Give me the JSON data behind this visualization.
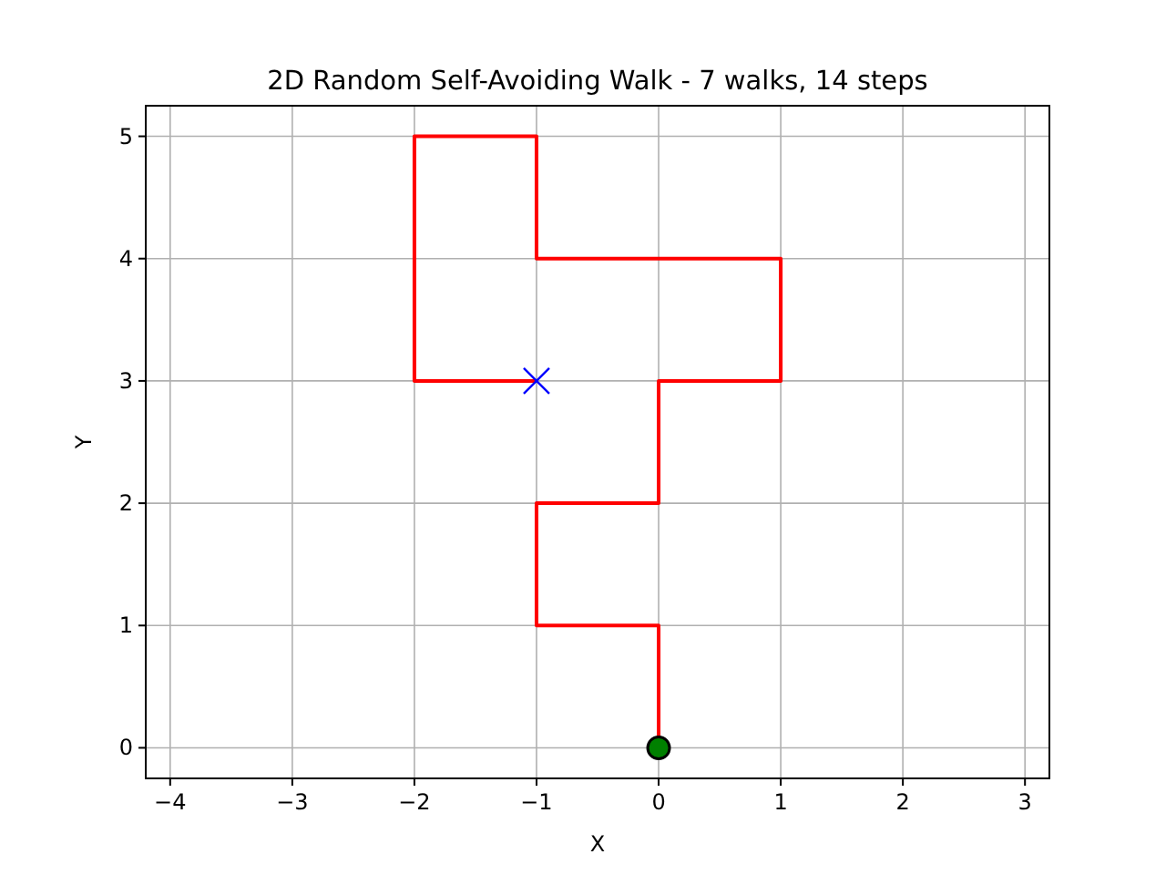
{
  "chart_data": {
    "type": "line",
    "title": "2D Random Self-Avoiding Walk - 7 walks, 14 steps",
    "xlabel": "X",
    "ylabel": "Y",
    "xlim": [
      -4.2,
      3.2
    ],
    "ylim": [
      -0.25,
      5.25
    ],
    "xticks": [
      -4,
      -3,
      -2,
      -1,
      0,
      1,
      2,
      3
    ],
    "yticks": [
      0,
      1,
      2,
      3,
      4,
      5
    ],
    "grid": true,
    "series": [
      {
        "color": "#ff0000",
        "marker": "none",
        "x": [
          0,
          0,
          -1,
          -1,
          0,
          0,
          1,
          1,
          0,
          -1,
          -1,
          -2,
          -2,
          -2,
          -1
        ],
        "values": [
          0,
          1,
          1,
          2,
          2,
          3,
          3,
          4,
          4,
          4,
          5,
          5,
          4,
          3,
          3
        ]
      },
      {
        "type": "scatter",
        "color": "#008000",
        "marker": "circle",
        "x": [
          0
        ],
        "values": [
          0
        ]
      },
      {
        "type": "scatter",
        "color": "#0000ff",
        "marker": "cross",
        "x": [
          -1
        ],
        "values": [
          3
        ]
      }
    ]
  }
}
